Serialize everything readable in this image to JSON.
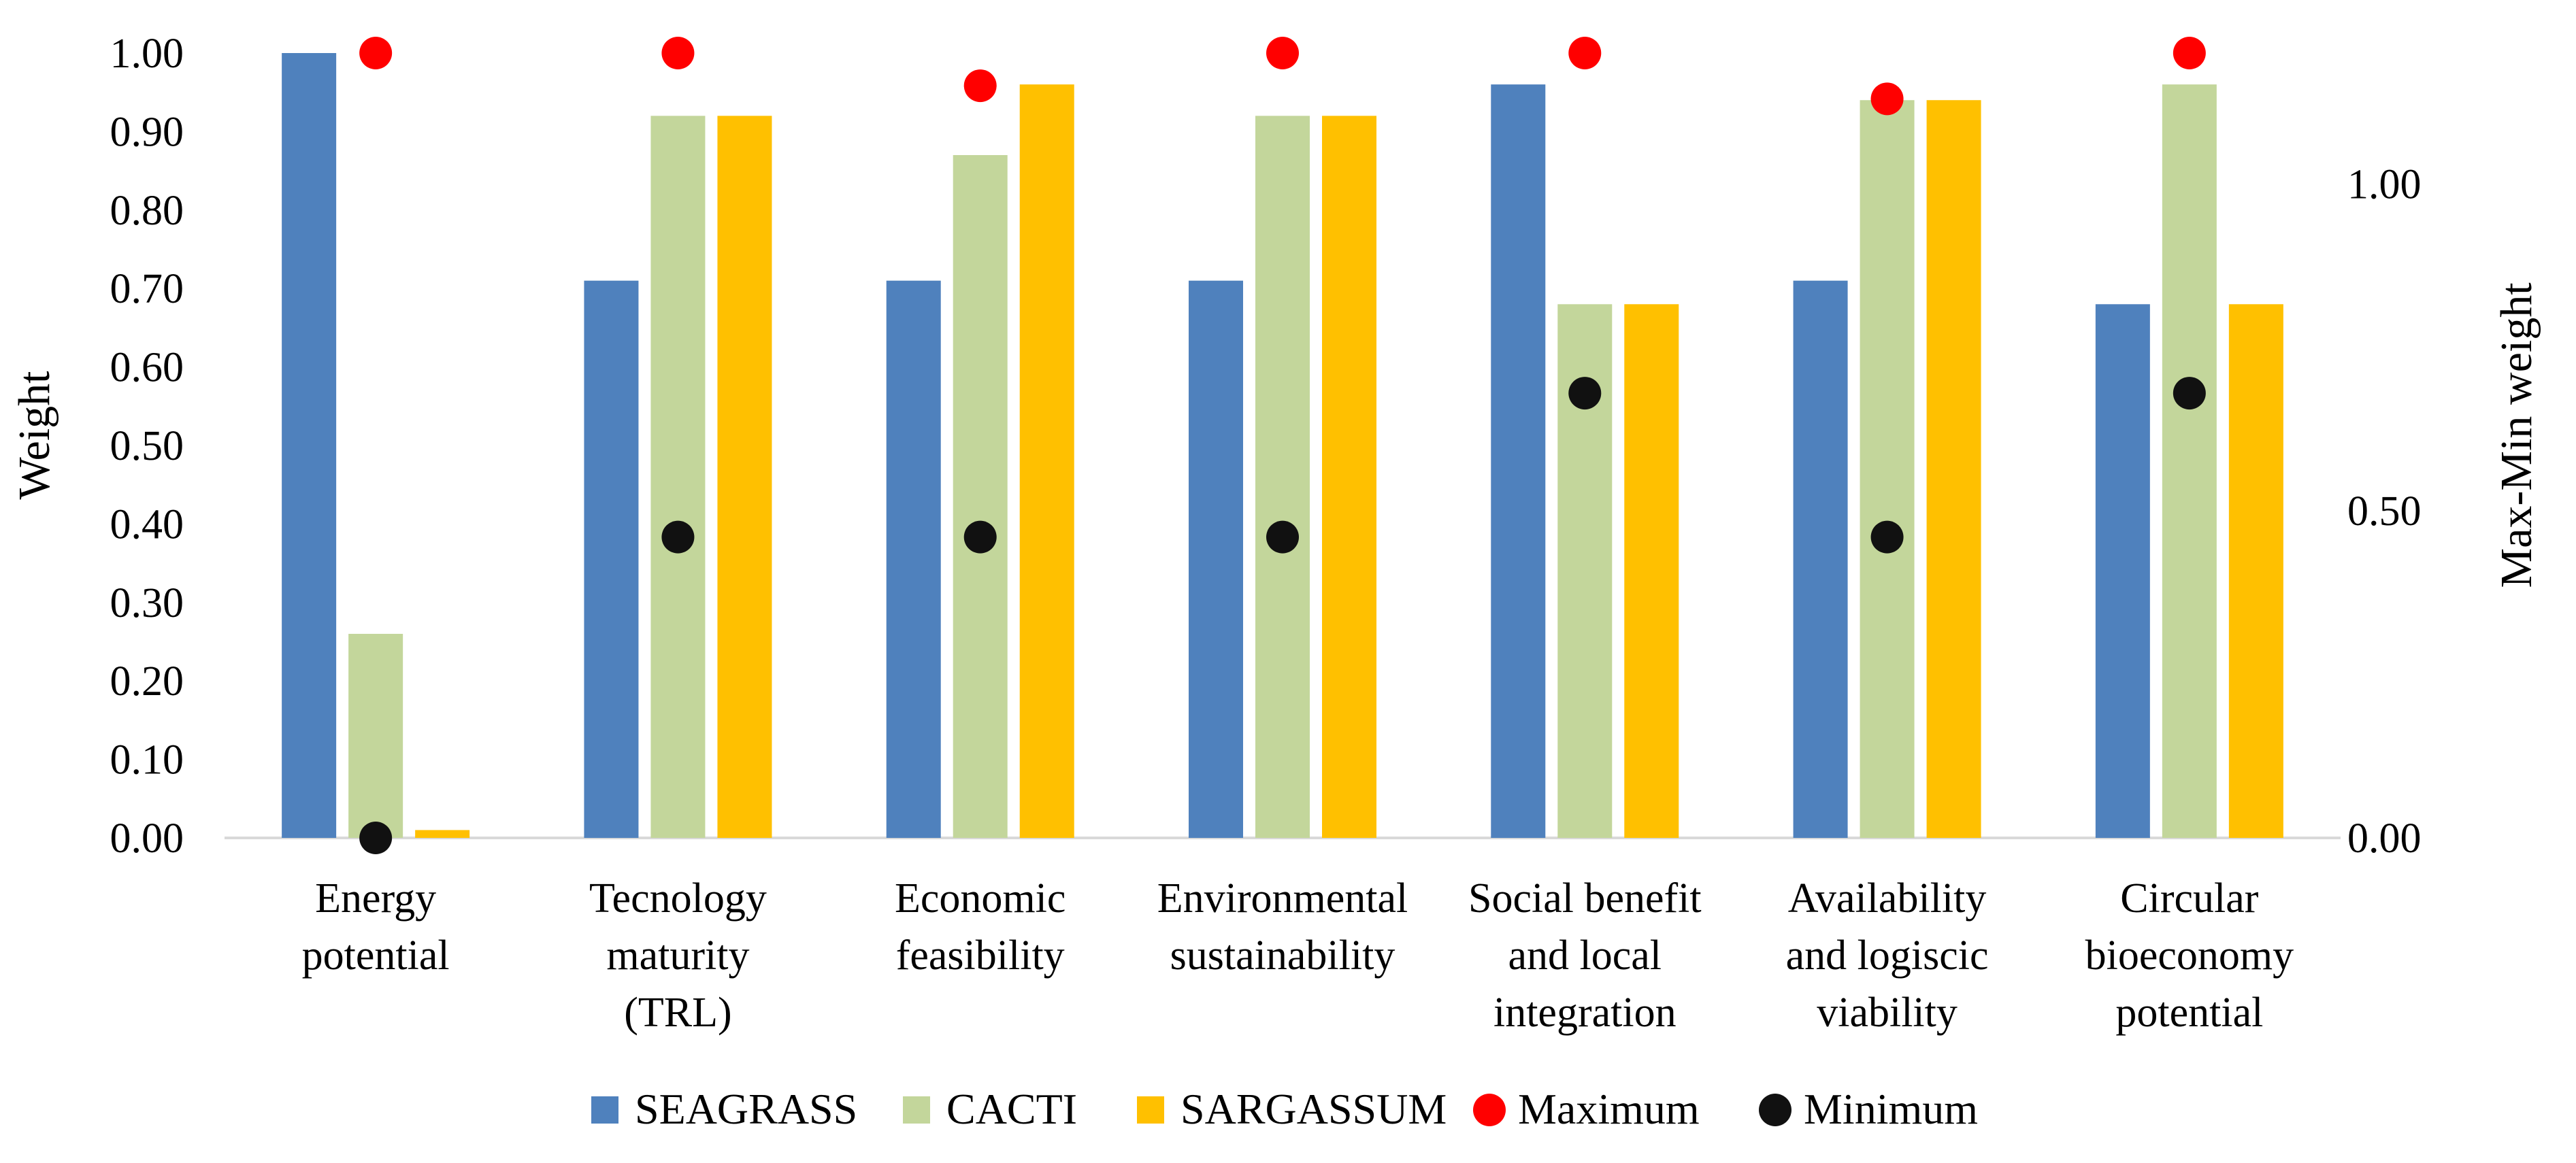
{
  "chart_data": {
    "type": "bar",
    "categories": [
      [
        "Energy",
        "potential"
      ],
      [
        "Tecnology",
        "maturity",
        "(TRL)"
      ],
      [
        "Economic",
        "feasibility"
      ],
      [
        "Environmental",
        "sustainability"
      ],
      [
        "Social benefit",
        "and local",
        "integration"
      ],
      [
        "Availability",
        "and logiscic",
        "viability"
      ],
      [
        "Circular",
        "bioeconomy",
        "potential"
      ]
    ],
    "series": [
      {
        "name": "SEAGRASS",
        "values": [
          1.0,
          0.71,
          0.71,
          0.71,
          0.96,
          0.71,
          0.68
        ],
        "color": "#4F81BD"
      },
      {
        "name": "CACTI",
        "values": [
          0.26,
          0.92,
          0.87,
          0.92,
          0.68,
          0.94,
          0.96
        ],
        "color": "#C3D69B"
      },
      {
        "name": "SARGASSUM",
        "values": [
          0.01,
          0.92,
          0.96,
          0.92,
          0.68,
          0.94,
          0.68
        ],
        "color": "#FFC000"
      }
    ],
    "markers": [
      {
        "name": "Maximum",
        "axis": "secondary",
        "values": [
          1.2,
          1.2,
          1.15,
          1.2,
          1.2,
          1.13,
          1.2
        ],
        "color": "#FF0000"
      },
      {
        "name": "Minimum",
        "axis": "secondary",
        "values": [
          0.0,
          0.46,
          0.46,
          0.46,
          0.68,
          0.46,
          0.68
        ],
        "color": "#111111"
      }
    ],
    "ylabel": "Weight",
    "ylim": [
      0,
      1.0
    ],
    "yticks": [
      "0.00",
      "0.10",
      "0.20",
      "0.30",
      "0.40",
      "0.50",
      "0.60",
      "0.70",
      "0.80",
      "0.90",
      "1.00"
    ],
    "y2label": "Max-Min weight",
    "y2lim": [
      0,
      1.2
    ],
    "y2ticks": [
      "0.00",
      "0.50",
      "1.00"
    ],
    "grid": false,
    "legend_position": "bottom"
  }
}
